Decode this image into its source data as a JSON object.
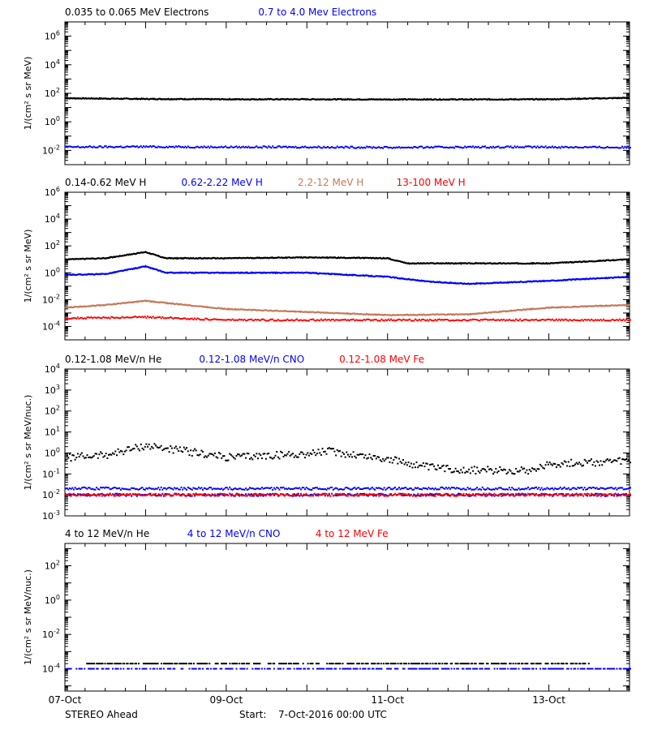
{
  "footer": {
    "spacecraft": "STEREO Ahead",
    "start_label": "Start:",
    "start_value": "7-Oct-2016 00:00 UTC"
  },
  "colors": {
    "black": "#000000",
    "blue": "#0000ff",
    "tan": "#c47a5a",
    "red": "#ff0000"
  },
  "chart_data": [
    {
      "type": "scatter",
      "title": "",
      "xlabel": "",
      "ylabel": "1/(cm² s sr MeV)",
      "yscale": "log",
      "ylim": [
        0.001,
        10000000
      ],
      "xlim": [
        "2016-10-07",
        "2016-10-14"
      ],
      "xticks": [],
      "yticks": [
        {
          "value": 0.01,
          "base": "10",
          "exp": "-2"
        },
        {
          "value": 1,
          "base": "10",
          "exp": "0"
        },
        {
          "value": 100,
          "base": "10",
          "exp": "2"
        },
        {
          "value": 10000,
          "base": "10",
          "exp": "4"
        },
        {
          "value": 1000000,
          "base": "10",
          "exp": "6"
        }
      ],
      "legend": [
        {
          "label": "0.035 to 0.065 MeV Electrons",
          "color": "#000000"
        },
        {
          "label": "0.7 to 4.0 Mev Electrons",
          "color": "#0000ff"
        }
      ],
      "series": [
        {
          "color": "#000000",
          "style": "line",
          "x": [
            "2016-10-07",
            "2016-10-08",
            "2016-10-09",
            "2016-10-10",
            "2016-10-11",
            "2016-10-12",
            "2016-10-13",
            "2016-10-14"
          ],
          "y": [
            45,
            40,
            38,
            38,
            37,
            37,
            38,
            48
          ]
        },
        {
          "color": "#0000ff",
          "style": "dots",
          "x": [
            "2016-10-07",
            "2016-10-08",
            "2016-10-09",
            "2016-10-10",
            "2016-10-11",
            "2016-10-12",
            "2016-10-13",
            "2016-10-14"
          ],
          "y": [
            0.017,
            0.018,
            0.017,
            0.017,
            0.016,
            0.017,
            0.017,
            0.016
          ]
        }
      ]
    },
    {
      "type": "scatter",
      "title": "",
      "xlabel": "",
      "ylabel": "1/(cm² s sr MeV)",
      "yscale": "log",
      "ylim": [
        1e-05,
        1000000
      ],
      "xlim": [
        "2016-10-07",
        "2016-10-14"
      ],
      "xticks": [],
      "yticks": [
        {
          "value": 0.0001,
          "base": "10",
          "exp": "-4"
        },
        {
          "value": 0.01,
          "base": "10",
          "exp": "-2"
        },
        {
          "value": 1,
          "base": "10",
          "exp": "0"
        },
        {
          "value": 100,
          "base": "10",
          "exp": "2"
        },
        {
          "value": 10000,
          "base": "10",
          "exp": "4"
        },
        {
          "value": 1000000,
          "base": "10",
          "exp": "6"
        }
      ],
      "legend": [
        {
          "label": "0.14-0.62 MeV H",
          "color": "#000000"
        },
        {
          "label": "0.62-2.22 MeV H",
          "color": "#0000ff"
        },
        {
          "label": "2.2-12 MeV H",
          "color": "#c47a5a"
        },
        {
          "label": "13-100 MeV H",
          "color": "#ff0000"
        }
      ],
      "series": [
        {
          "color": "#000000",
          "style": "line",
          "x": [
            "2016-10-07",
            "2016-10-07 12:00",
            "2016-10-08",
            "2016-10-08 06:00",
            "2016-10-09",
            "2016-10-10",
            "2016-10-11",
            "2016-10-11 06:00",
            "2016-10-12",
            "2016-10-13",
            "2016-10-14"
          ],
          "y": [
            10,
            12,
            35,
            12,
            12,
            14,
            12,
            5,
            5,
            5,
            10
          ]
        },
        {
          "color": "#0000ff",
          "style": "line",
          "x": [
            "2016-10-07",
            "2016-10-07 12:00",
            "2016-10-08",
            "2016-10-08 06:00",
            "2016-10-09",
            "2016-10-10",
            "2016-10-11",
            "2016-10-11 12:00",
            "2016-10-12",
            "2016-10-13",
            "2016-10-14"
          ],
          "y": [
            0.7,
            0.8,
            3,
            1,
            1,
            1,
            0.5,
            0.22,
            0.15,
            0.25,
            0.5
          ]
        },
        {
          "color": "#c47a5a",
          "style": "line",
          "x": [
            "2016-10-07",
            "2016-10-07 12:00",
            "2016-10-08",
            "2016-10-08 12:00",
            "2016-10-09",
            "2016-10-10",
            "2016-10-11",
            "2016-10-12",
            "2016-10-13",
            "2016-10-14"
          ],
          "y": [
            0.0025,
            0.004,
            0.008,
            0.004,
            0.002,
            0.0012,
            0.0007,
            0.0008,
            0.0025,
            0.004
          ]
        },
        {
          "color": "#ff0000",
          "style": "dots",
          "x": [
            "2016-10-07",
            "2016-10-08",
            "2016-10-09",
            "2016-10-10",
            "2016-10-11",
            "2016-10-12",
            "2016-10-13",
            "2016-10-14"
          ],
          "y": [
            0.0004,
            0.0005,
            0.0003,
            0.0003,
            0.0003,
            0.0003,
            0.0003,
            0.0003
          ]
        }
      ]
    },
    {
      "type": "scatter",
      "title": "",
      "xlabel": "",
      "ylabel": "1/(cm² s sr MeV/nuc.)",
      "yscale": "log",
      "ylim": [
        0.001,
        10000
      ],
      "xlim": [
        "2016-10-07",
        "2016-10-14"
      ],
      "xticks": [],
      "yticks": [
        {
          "value": 0.001,
          "base": "10",
          "exp": "-3"
        },
        {
          "value": 0.01,
          "base": "10",
          "exp": "-2"
        },
        {
          "value": 0.1,
          "base": "10",
          "exp": "-1"
        },
        {
          "value": 1,
          "base": "10",
          "exp": "0"
        },
        {
          "value": 10,
          "base": "10",
          "exp": "1"
        },
        {
          "value": 100,
          "base": "10",
          "exp": "2"
        },
        {
          "value": 1000,
          "base": "10",
          "exp": "3"
        },
        {
          "value": 10000,
          "base": "10",
          "exp": "4"
        }
      ],
      "legend": [
        {
          "label": "0.12-1.08 MeV/n He",
          "color": "#000000"
        },
        {
          "label": "0.12-1.08 MeV/n CNO",
          "color": "#0000ff"
        },
        {
          "label": "0.12-1.08 MeV Fe",
          "color": "#ff0000"
        }
      ],
      "series": [
        {
          "color": "#000000",
          "style": "dots",
          "x": [
            "2016-10-07",
            "2016-10-07 12:00",
            "2016-10-08",
            "2016-10-08 12:00",
            "2016-10-09",
            "2016-10-10",
            "2016-10-10 06:00",
            "2016-10-11",
            "2016-10-11 12:00",
            "2016-10-12",
            "2016-10-12 18:00",
            "2016-10-13",
            "2016-10-14"
          ],
          "y": [
            0.6,
            0.8,
            2.2,
            1.2,
            0.6,
            0.9,
            1.2,
            0.5,
            0.2,
            0.15,
            0.15,
            0.3,
            0.4
          ]
        },
        {
          "color": "#0000ff",
          "style": "dots",
          "x": [
            "2016-10-07",
            "2016-10-09",
            "2016-10-11",
            "2016-10-13",
            "2016-10-14"
          ],
          "y": [
            0.02,
            0.02,
            0.02,
            0.02,
            0.02
          ]
        },
        {
          "color": "#0000ff",
          "style": "dots",
          "x": [
            "2016-10-07",
            "2016-10-09",
            "2016-10-11",
            "2016-10-13",
            "2016-10-14"
          ],
          "y": [
            0.01,
            0.01,
            0.01,
            0.01,
            0.01
          ]
        },
        {
          "color": "#ff0000",
          "style": "dots",
          "x": [
            "2016-10-07",
            "2016-10-09",
            "2016-10-11",
            "2016-10-13",
            "2016-10-14"
          ],
          "y": [
            0.01,
            0.01,
            0.01,
            0.01,
            0.01
          ]
        }
      ]
    },
    {
      "type": "scatter",
      "title": "",
      "xlabel": "",
      "ylabel": "1/(cm² s sr MeV/nuc.)",
      "yscale": "log",
      "ylim": [
        5e-06,
        2000
      ],
      "xlim": [
        "2016-10-07",
        "2016-10-14"
      ],
      "xticks": [
        "07-Oct",
        "09-Oct",
        "11-Oct",
        "13-Oct"
      ],
      "yticks": [
        {
          "value": 0.0001,
          "base": "10",
          "exp": "-4"
        },
        {
          "value": 0.01,
          "base": "10",
          "exp": "-2"
        },
        {
          "value": 1,
          "base": "10",
          "exp": "0"
        },
        {
          "value": 100,
          "base": "10",
          "exp": "2"
        }
      ],
      "legend": [
        {
          "label": "4 to 12 MeV/n He",
          "color": "#000000"
        },
        {
          "label": "4 to 12 MeV/n CNO",
          "color": "#0000ff"
        },
        {
          "label": "4 to 12 MeV Fe",
          "color": "#ff0000"
        }
      ],
      "series": [
        {
          "color": "#0000ff",
          "style": "dots",
          "x": [
            "2016-10-07",
            "2016-10-09",
            "2016-10-11",
            "2016-10-13",
            "2016-10-14"
          ],
          "y": [
            0.0001,
            0.0001,
            0.0001,
            0.0001,
            0.0001
          ]
        },
        {
          "color": "#000000",
          "style": "dots",
          "x": [
            "2016-10-07 06:00",
            "2016-10-08",
            "2016-10-10",
            "2016-10-12 12:00",
            "2016-10-13 12:00"
          ],
          "y": [
            0.0002,
            0.0002,
            0.0002,
            0.0002,
            0.0002
          ]
        }
      ]
    }
  ]
}
